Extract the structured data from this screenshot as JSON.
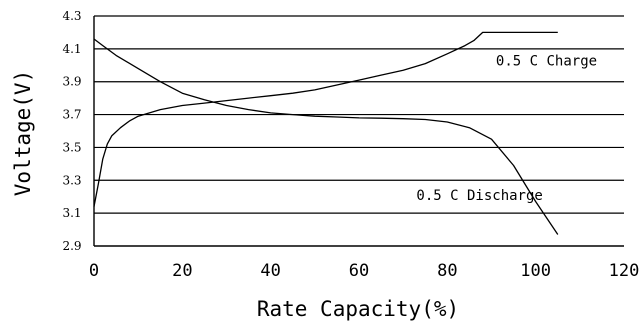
{
  "chart_data": {
    "type": "line",
    "title": "",
    "xlabel": "Rate Capacity(%)",
    "ylabel": "Voltage(V)",
    "xlim": [
      0,
      120
    ],
    "ylim": [
      2.9,
      4.3
    ],
    "x_ticks": [
      0,
      20,
      40,
      60,
      80,
      100,
      120
    ],
    "x_tick_labels": [
      "0",
      "20",
      "40",
      "60",
      "80",
      "100",
      "120"
    ],
    "y_ticks": [
      2.9,
      3.1,
      3.3,
      3.5,
      3.7,
      3.9,
      4.1,
      4.3
    ],
    "y_tick_labels": [
      "2.9",
      "3.1",
      "3.3",
      "3.5",
      "3.7",
      "3.9",
      "4.1",
      "4.3"
    ],
    "grid": "horizontal",
    "legend": "none",
    "series": [
      {
        "name": "0.5 C Charge",
        "x": [
          0,
          1,
          2,
          3,
          4,
          6,
          8,
          10,
          15,
          20,
          25,
          30,
          35,
          40,
          45,
          50,
          55,
          60,
          65,
          70,
          75,
          80,
          84,
          86,
          88,
          105
        ],
        "y": [
          3.14,
          3.28,
          3.43,
          3.52,
          3.57,
          3.62,
          3.66,
          3.69,
          3.73,
          3.755,
          3.77,
          3.785,
          3.8,
          3.815,
          3.83,
          3.85,
          3.88,
          3.91,
          3.94,
          3.97,
          4.01,
          4.07,
          4.12,
          4.15,
          4.2,
          4.2
        ]
      },
      {
        "name": "0.5 C Discharge",
        "x": [
          0,
          2,
          5,
          10,
          15,
          20,
          25,
          30,
          35,
          40,
          45,
          50,
          55,
          60,
          65,
          70,
          75,
          80,
          85,
          90,
          95,
          100,
          105
        ],
        "y": [
          4.16,
          4.12,
          4.06,
          3.98,
          3.9,
          3.83,
          3.79,
          3.755,
          3.73,
          3.71,
          3.7,
          3.69,
          3.685,
          3.68,
          3.678,
          3.675,
          3.67,
          3.655,
          3.62,
          3.55,
          3.39,
          3.17,
          2.97
        ]
      }
    ],
    "series_labels": [
      {
        "text": "0.5 C Charge",
        "x": 91,
        "y": 4.0
      },
      {
        "text": "0.5 C Discharge",
        "x": 73,
        "y": 3.18
      }
    ]
  }
}
